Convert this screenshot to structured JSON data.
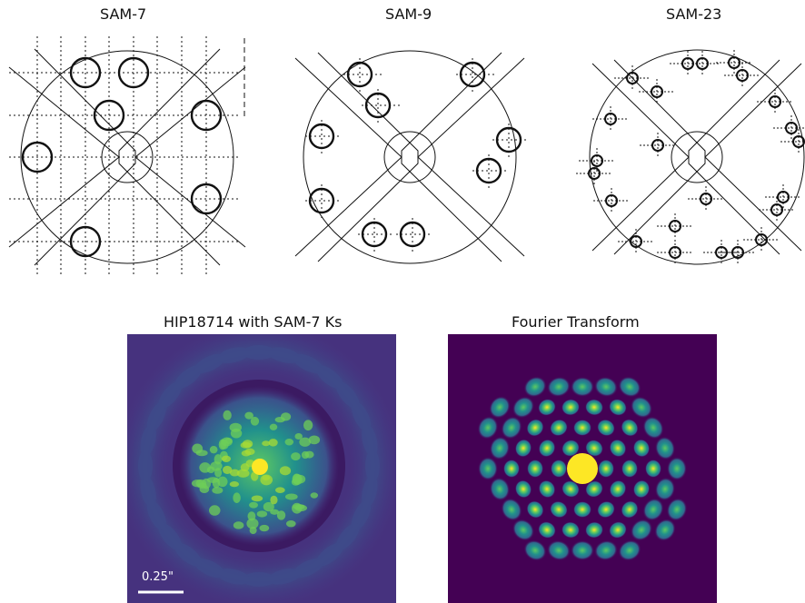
{
  "masks": [
    {
      "title": "SAM-7"
    },
    {
      "title": "SAM-9"
    },
    {
      "title": "SAM-23"
    }
  ],
  "images": {
    "observed_title": "HIP18714 with SAM-7 Ks",
    "transform_title": "Fourier Transform",
    "scale_bar_label": "0.25\""
  },
  "colors": {
    "background": "#440154",
    "mid": "#31688e",
    "teal": "#21918c",
    "green": "#5ec962",
    "yellow": "#fde725",
    "line": "#111111"
  }
}
